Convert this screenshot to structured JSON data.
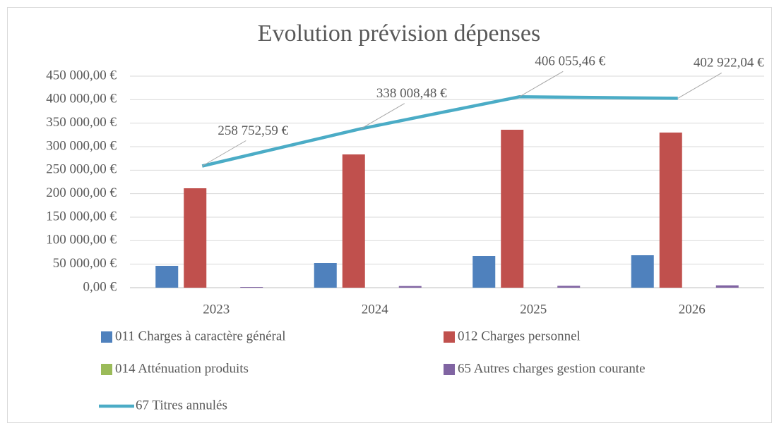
{
  "chart_data": {
    "type": "bar",
    "title": "Evolution prévision dépenses",
    "categories": [
      "2023",
      "2024",
      "2025",
      "2026"
    ],
    "series": [
      {
        "name": "011 Charges à caractère général",
        "color": "#4f81bd",
        "values": [
          46500,
          52500,
          67500,
          69000
        ]
      },
      {
        "name": "012 Charges personnel",
        "color": "#c0504d",
        "values": [
          211500,
          283500,
          336000,
          330000
        ]
      },
      {
        "name": "014 Atténuation produits",
        "color": "#9bbb59",
        "values": [
          0,
          0,
          0,
          0
        ]
      },
      {
        "name": "65 Autres charges gestion courante",
        "color": "#8064a2",
        "values": [
          1500,
          3500,
          4000,
          5000
        ]
      },
      {
        "name": "67 Titres annulés",
        "color": "#4bacc6",
        "type": "line",
        "values": [
          258752.59,
          338008.48,
          406055.46,
          402922.04
        ],
        "value_labels": [
          "258 752,59 €",
          "338 008,48 €",
          "406 055,46 €",
          "402 922,04 €"
        ]
      }
    ],
    "ylim": [
      0,
      450000
    ],
    "yticks": [
      {
        "value": 0,
        "label": "0,00 €"
      },
      {
        "value": 50000,
        "label": "50 000,00 €"
      },
      {
        "value": 100000,
        "label": "100 000,00 €"
      },
      {
        "value": 150000,
        "label": "150 000,00 €"
      },
      {
        "value": 200000,
        "label": "200 000,00 €"
      },
      {
        "value": 250000,
        "label": "250 000,00 €"
      },
      {
        "value": 300000,
        "label": "300 000,00 €"
      },
      {
        "value": 350000,
        "label": "350 000,00 €"
      },
      {
        "value": 400000,
        "label": "400 000,00 €"
      },
      {
        "value": 450000,
        "label": "450 000,00 €"
      }
    ],
    "grid": true,
    "legend": "bottom"
  }
}
